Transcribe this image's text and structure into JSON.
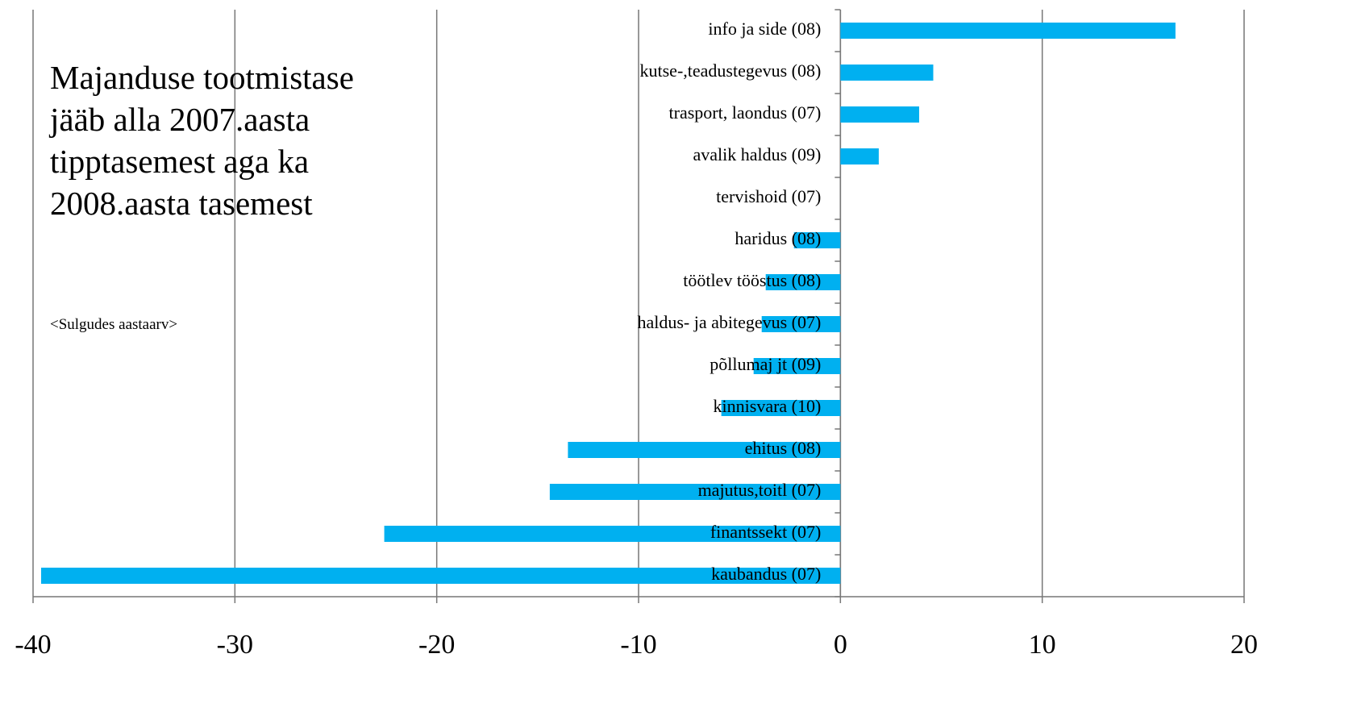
{
  "chart_data": {
    "type": "barh",
    "title": "Majanduse tootmistase jääb alla 2007.aasta tipptasemest aga ka 2008.aasta tasemest",
    "subtitle": "<Sulgudes aastaarv>",
    "categories": [
      "info ja side (08)",
      "kutse-,teadustegevus (08)",
      "trasport, laondus (07)",
      "avalik haldus (09)",
      "tervishoid (07)",
      "haridus (08)",
      "töötlev tööstus (08)",
      "haldus- ja abitegevus (07)",
      "põllumaj jt (09)",
      "kinnisvara (10)",
      "ehitus (08)",
      "majutus,toitl (07)",
      "finantssekt (07)",
      "kaubandus (07)"
    ],
    "values": [
      16.6,
      4.6,
      3.9,
      1.9,
      0,
      -2.3,
      -3.7,
      -3.9,
      -4.3,
      -5.9,
      -13.5,
      -14.4,
      -22.6,
      -39.6
    ],
    "color": "#00b0f0",
    "xlim": [
      -40,
      20
    ],
    "xticks": [
      -40,
      -30,
      -20,
      -10,
      0,
      10,
      20
    ],
    "grid": true
  }
}
